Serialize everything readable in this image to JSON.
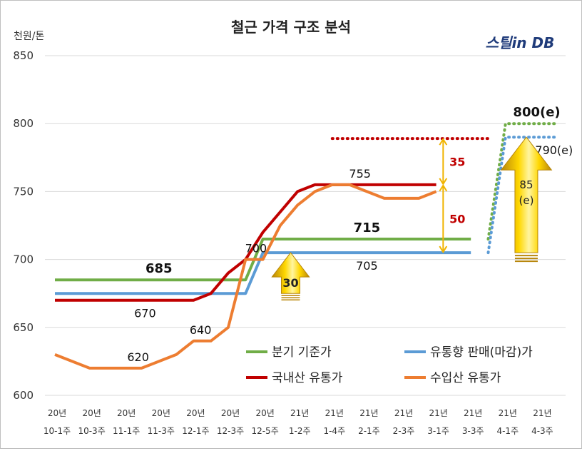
{
  "chart_data": {
    "type": "line",
    "title": "철근 가격 구조 분석",
    "ylabel": "천원/톤",
    "ylim": [
      600,
      850
    ],
    "yticks": [
      600,
      650,
      700,
      750,
      800,
      850
    ],
    "grid": "horizontal",
    "legend_position": "bottom-right",
    "logo": "스틸in DB",
    "x_tick_labels": [
      {
        "year": "20년",
        "week": "10-1주"
      },
      {
        "year": "20년",
        "week": "10-3주"
      },
      {
        "year": "20년",
        "week": "11-1주"
      },
      {
        "year": "20년",
        "week": "11-3주"
      },
      {
        "year": "20년",
        "week": "12-1주"
      },
      {
        "year": "20년",
        "week": "12-3주"
      },
      {
        "year": "20년",
        "week": "12-5주"
      },
      {
        "year": "21년",
        "week": "1-2주"
      },
      {
        "year": "21년",
        "week": "1-4주"
      },
      {
        "year": "21년",
        "week": "2-1주"
      },
      {
        "year": "21년",
        "week": "2-3주"
      },
      {
        "year": "21년",
        "week": "3-1주"
      },
      {
        "year": "21년",
        "week": "3-3주"
      },
      {
        "year": "21년",
        "week": "4-1주"
      },
      {
        "year": "21년",
        "week": "4-3주"
      }
    ],
    "series": [
      {
        "name": "분기 기준가",
        "color": "#70ad47",
        "points": [
          [
            0,
            685
          ],
          [
            0.5,
            685
          ],
          [
            1,
            685
          ],
          [
            1.5,
            685
          ],
          [
            2,
            685
          ],
          [
            2.5,
            685
          ],
          [
            3,
            685
          ],
          [
            3.5,
            685
          ],
          [
            4,
            685
          ],
          [
            4.5,
            685
          ],
          [
            5,
            685
          ],
          [
            5.5,
            685
          ],
          [
            6,
            715
          ],
          [
            6.5,
            715
          ],
          [
            7,
            715
          ],
          [
            7.5,
            715
          ],
          [
            8,
            715
          ],
          [
            8.5,
            715
          ],
          [
            9,
            715
          ],
          [
            9.5,
            715
          ],
          [
            10,
            715
          ],
          [
            10.5,
            715
          ],
          [
            11,
            715
          ],
          [
            11.5,
            715
          ],
          [
            12,
            715
          ]
        ],
        "forecast_points": [
          [
            12.5,
            715
          ],
          [
            13,
            800
          ],
          [
            13.5,
            800
          ],
          [
            14,
            800
          ],
          [
            14.5,
            800
          ]
        ]
      },
      {
        "name": "유통향 판매(마감)가",
        "color": "#5b9bd5",
        "points": [
          [
            0,
            675
          ],
          [
            0.5,
            675
          ],
          [
            1,
            675
          ],
          [
            1.5,
            675
          ],
          [
            2,
            675
          ],
          [
            2.5,
            675
          ],
          [
            3,
            675
          ],
          [
            3.5,
            675
          ],
          [
            4,
            675
          ],
          [
            4.5,
            675
          ],
          [
            5,
            675
          ],
          [
            5.5,
            675
          ],
          [
            6,
            705
          ],
          [
            6.5,
            705
          ],
          [
            7,
            705
          ],
          [
            7.5,
            705
          ],
          [
            8,
            705
          ],
          [
            8.5,
            705
          ],
          [
            9,
            705
          ],
          [
            9.5,
            705
          ],
          [
            10,
            705
          ],
          [
            10.5,
            705
          ],
          [
            11,
            705
          ],
          [
            11.5,
            705
          ],
          [
            12,
            705
          ]
        ],
        "forecast_points": [
          [
            12.5,
            705
          ],
          [
            13,
            790
          ],
          [
            13.5,
            790
          ],
          [
            14,
            790
          ],
          [
            14.5,
            790
          ]
        ]
      },
      {
        "name": "국내산 유통가",
        "color": "#c00000",
        "points": [
          [
            0,
            670
          ],
          [
            0.5,
            670
          ],
          [
            1,
            670
          ],
          [
            1.5,
            670
          ],
          [
            2,
            670
          ],
          [
            2.5,
            670
          ],
          [
            3,
            670
          ],
          [
            3.5,
            670
          ],
          [
            4,
            670
          ],
          [
            4.5,
            675
          ],
          [
            5,
            690
          ],
          [
            5.5,
            700
          ],
          [
            6,
            720
          ],
          [
            6.5,
            735
          ],
          [
            7,
            750
          ],
          [
            7.5,
            755
          ],
          [
            8,
            755
          ],
          [
            8.5,
            755
          ],
          [
            9,
            755
          ],
          [
            9.5,
            755
          ],
          [
            10,
            755
          ],
          [
            10.5,
            755
          ],
          [
            11,
            755
          ]
        ],
        "forecast_points": [
          [
            8,
            789
          ],
          [
            12.5,
            789
          ]
        ]
      },
      {
        "name": "수입산 유통가",
        "color": "#ed7d31",
        "points": [
          [
            0,
            630
          ],
          [
            0.5,
            625
          ],
          [
            1,
            620
          ],
          [
            1.5,
            620
          ],
          [
            2,
            620
          ],
          [
            2.5,
            620
          ],
          [
            3,
            625
          ],
          [
            3.5,
            630
          ],
          [
            4,
            640
          ],
          [
            4.5,
            640
          ],
          [
            5,
            650
          ],
          [
            5.5,
            700
          ],
          [
            6,
            700
          ],
          [
            6.5,
            725
          ],
          [
            7,
            740
          ],
          [
            7.5,
            750
          ],
          [
            8,
            755
          ],
          [
            8.5,
            755
          ],
          [
            9,
            750
          ],
          [
            9.5,
            745
          ],
          [
            10,
            745
          ],
          [
            10.5,
            745
          ],
          [
            11,
            750
          ]
        ]
      }
    ],
    "data_labels": [
      {
        "text": "685",
        "x": 3,
        "y": 685,
        "bold": true
      },
      {
        "text": "670",
        "x": 2.6,
        "y": 670
      },
      {
        "text": "620",
        "x": 2.4,
        "y": 620
      },
      {
        "text": "640",
        "x": 4.2,
        "y": 640
      },
      {
        "text": "700",
        "x": 5.8,
        "y": 700
      },
      {
        "text": "715",
        "x": 9,
        "y": 715,
        "bold": true
      },
      {
        "text": "705",
        "x": 9,
        "y": 705
      },
      {
        "text": "755",
        "x": 8.8,
        "y": 755
      },
      {
        "text": "800(e)",
        "x": 13.9,
        "y": 800,
        "bold": true
      },
      {
        "text": "790(e)",
        "x": 14.4,
        "y": 790
      }
    ],
    "annotations": [
      {
        "text": "30",
        "type": "arrow-up",
        "from": 675,
        "to": 705,
        "x": 6.8
      },
      {
        "text": "35",
        "type": "double-arrow",
        "from": 755,
        "to": 789,
        "x": 11.2,
        "color": "#c00000"
      },
      {
        "text": "50",
        "type": "double-arrow",
        "from": 705,
        "to": 755,
        "x": 11.2,
        "color": "#c00000"
      },
      {
        "text": "85",
        "text2": "(e)",
        "type": "arrow-up",
        "from": 705,
        "to": 790,
        "x": 13.6
      }
    ]
  }
}
